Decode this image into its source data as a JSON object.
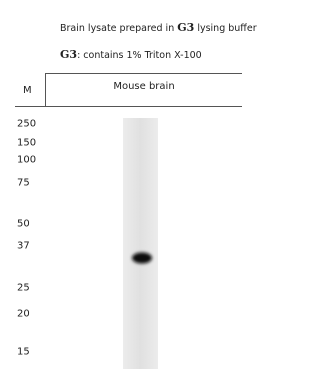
{
  "header": {
    "line1": [
      "Brain lysate prepared in ",
      "G3",
      " lysing buffer"
    ],
    "line2": [
      "G3",
      ": contains 1% Triton X-100"
    ]
  },
  "columns": {
    "marker": "M",
    "lane": "Mouse brain"
  },
  "markers": [
    250,
    150,
    100,
    75,
    50,
    37,
    25,
    20,
    15
  ]
}
